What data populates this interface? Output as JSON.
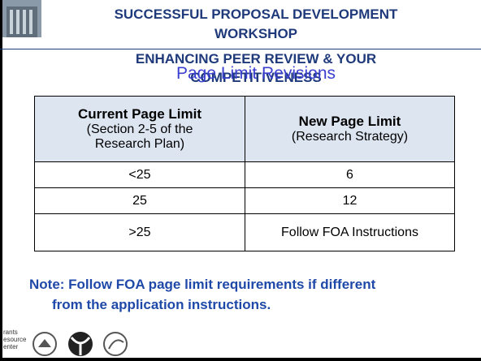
{
  "header": {
    "title": [
      "SUCCESSFUL PROPOSAL DEVELOPMENT",
      "WORKSHOP"
    ],
    "subtitle": [
      "ENHANCING PEER REVIEW & YOUR",
      "COMPETITIVENESS"
    ]
  },
  "slide_title": "Page Limit Revisions",
  "table": {
    "columns": [
      {
        "title": "Current Page Limit",
        "detail": [
          "(Section 2-5 of the",
          "Research Plan)"
        ]
      },
      {
        "title": "New Page Limit",
        "detail": [
          "(Research Strategy)"
        ]
      }
    ],
    "rows": [
      [
        "<25",
        "6"
      ],
      [
        "25",
        "12"
      ],
      [
        ">25",
        "Follow FOA Instructions"
      ]
    ]
  },
  "note": [
    "Note: Follow FOA page limit requirements if different",
    "from the application instructions."
  ],
  "logo_text": [
    "rants",
    "esource",
    "enter"
  ]
}
